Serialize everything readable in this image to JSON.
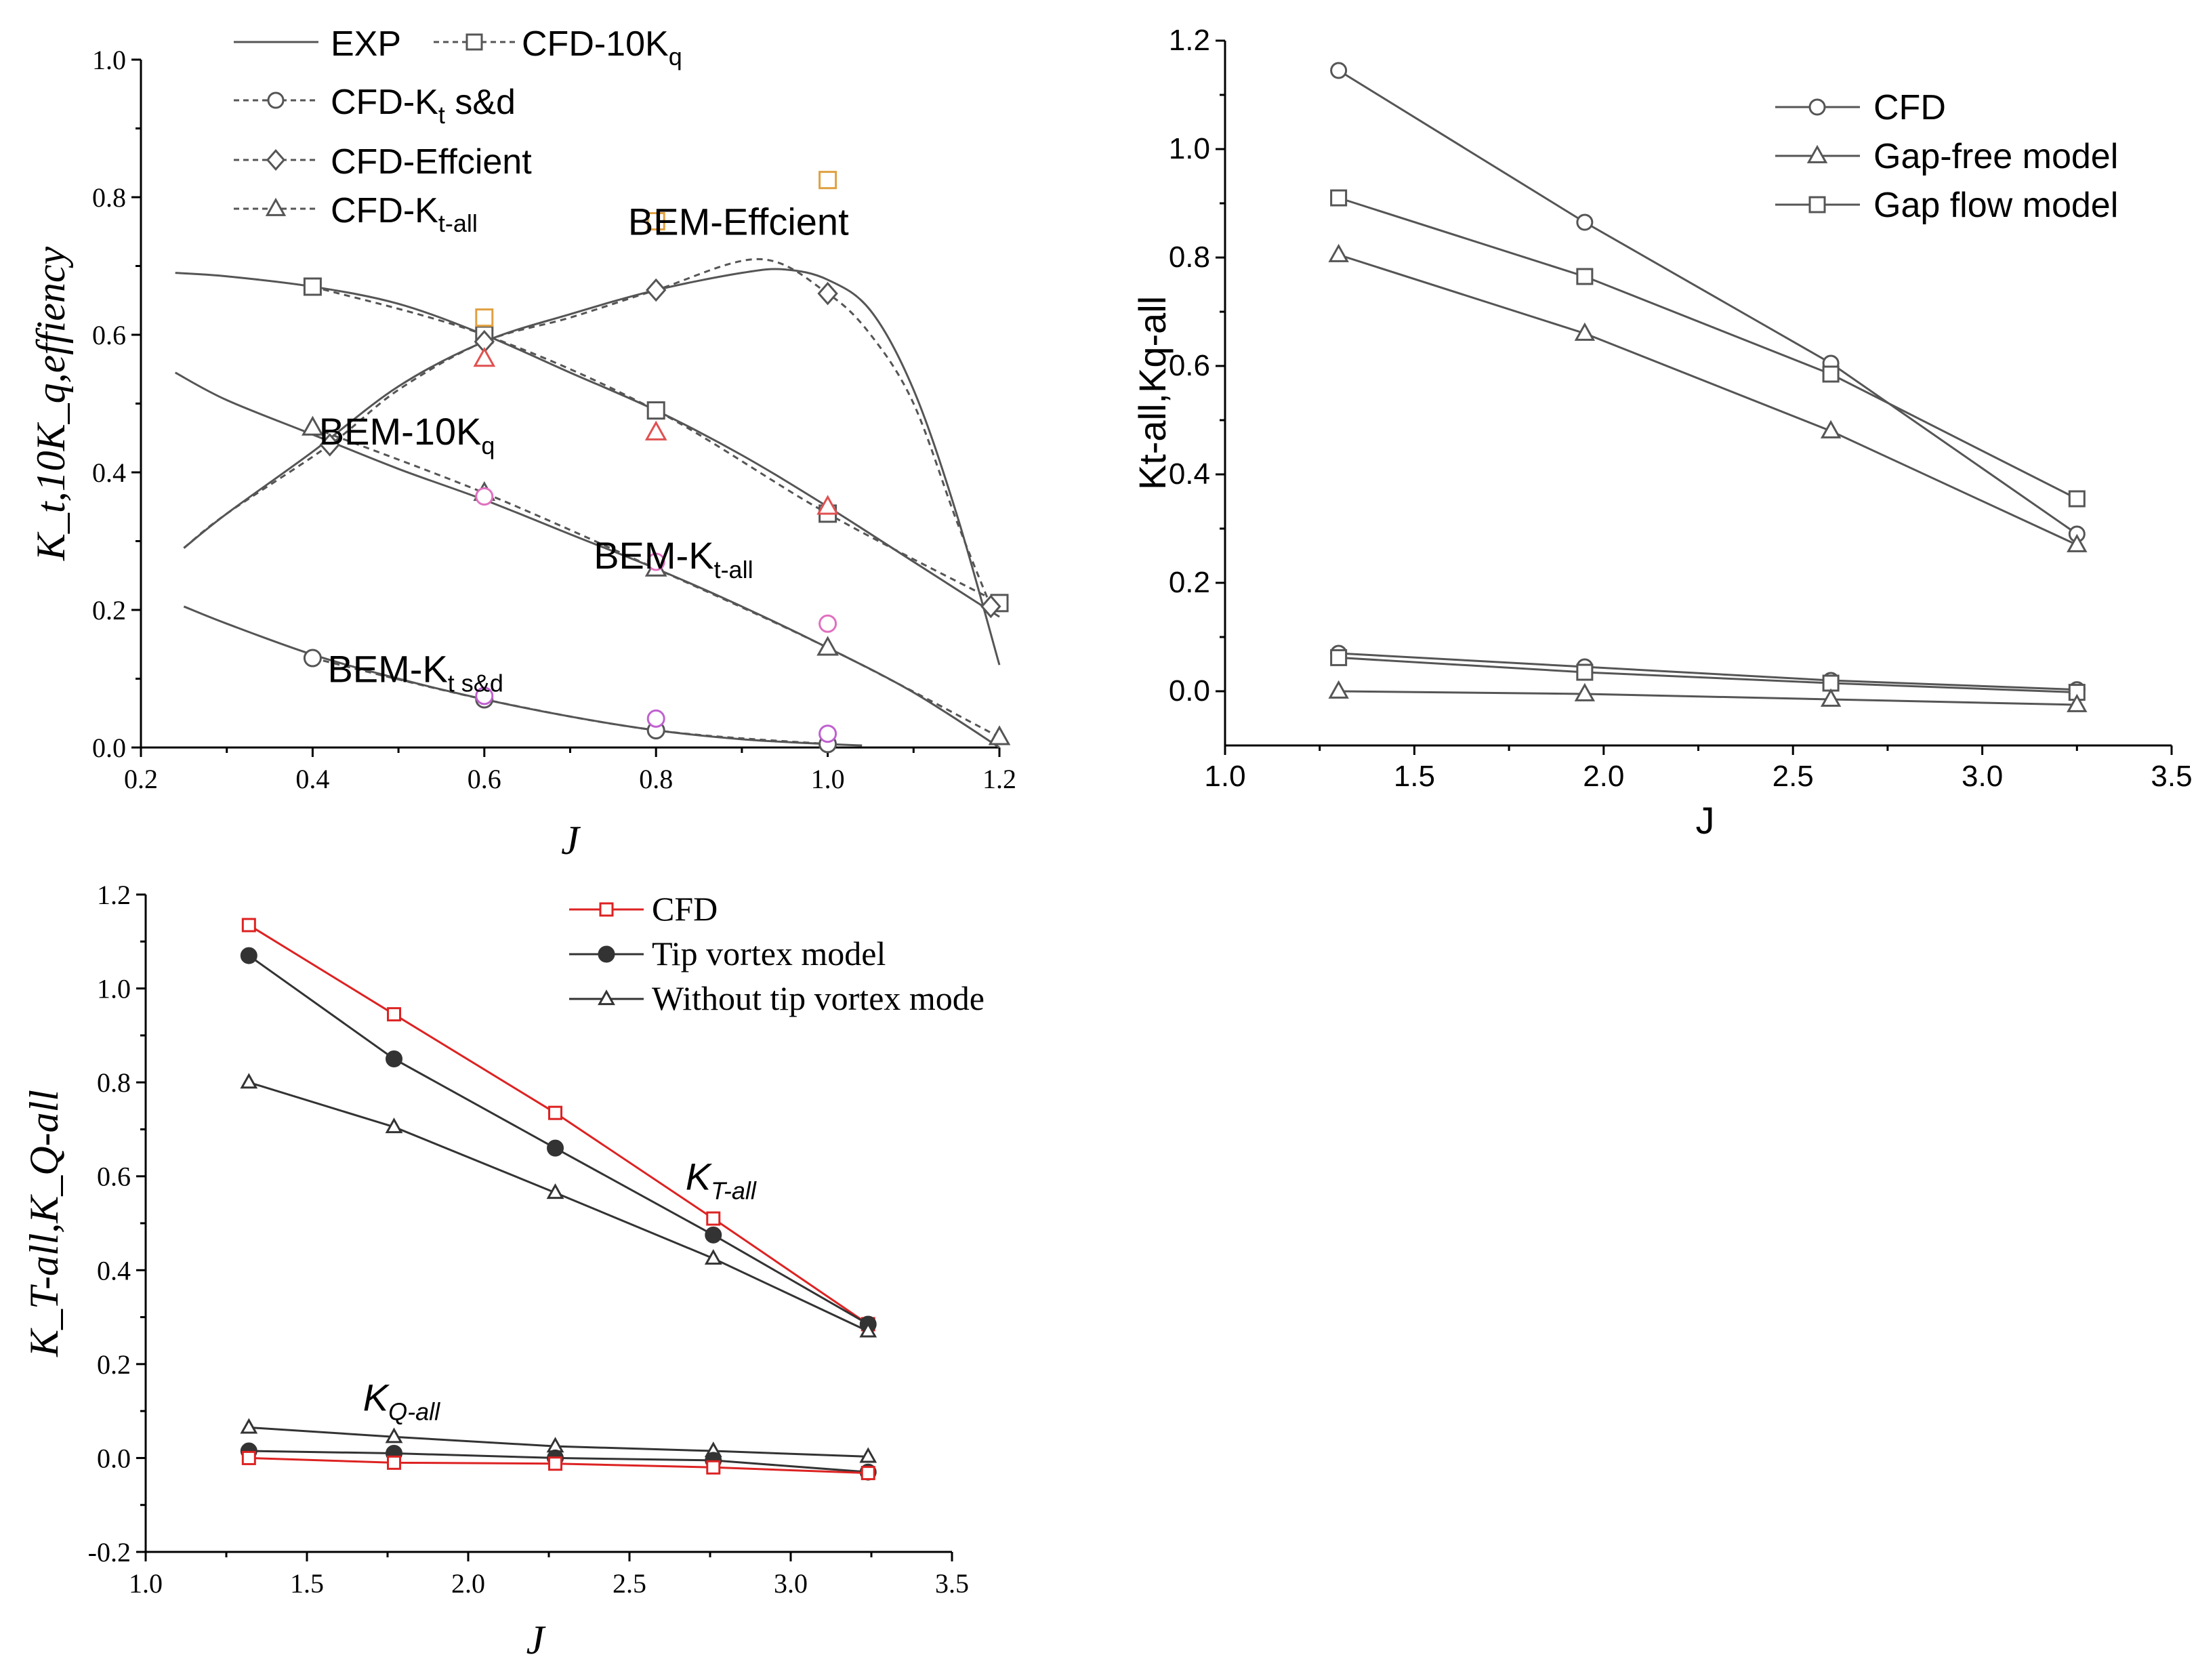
{
  "chart_data": [
    {
      "id": "p1",
      "type": "line",
      "xlabel": "J",
      "ylabel": "K_t,10K_q,effiency",
      "xlim": [
        0.2,
        1.2
      ],
      "ylim": [
        0.0,
        1.0
      ],
      "xticks": [
        "0.2",
        "0.4",
        "0.6",
        "0.8",
        "1.0",
        "1.2"
      ],
      "yticks": [
        "0.0",
        "0.2",
        "0.4",
        "0.6",
        "0.8",
        "1.0"
      ],
      "legend": [
        {
          "label": "EXP",
          "marker": "none",
          "dash": false
        },
        {
          "label": "CFD-10K",
          "sub": "q",
          "marker": "square",
          "dash": true
        },
        {
          "label": "CFD-K",
          "sub": "t",
          "tail": " s&d",
          "marker": "circle",
          "dash": true
        },
        {
          "label": "CFD-Effcient",
          "marker": "diamond",
          "dash": true
        },
        {
          "label": "CFD-K",
          "sub": "t-all",
          "marker": "triangle",
          "dash": true
        }
      ],
      "annotations": [
        {
          "text": "BEM-Effcient",
          "x": 0.87,
          "y": 0.765
        },
        {
          "text": "BEM-10K",
          "sub": "q",
          "x": 0.51,
          "y": 0.46
        },
        {
          "text": "BEM-K",
          "sub": "t-all",
          "x": 0.83,
          "y": 0.28
        },
        {
          "text": "BEM-K",
          "sub": "t s&d",
          "x": 0.52,
          "y": 0.115
        }
      ],
      "series": [
        {
          "name": "EXP 10Kq",
          "style": "solid",
          "color": "#555555",
          "x": [
            0.24,
            0.3,
            0.4,
            0.5,
            0.6,
            0.7,
            0.8,
            0.9,
            1.0,
            1.1,
            1.2
          ],
          "y": [
            0.69,
            0.685,
            0.67,
            0.645,
            0.6,
            0.545,
            0.49,
            0.425,
            0.35,
            0.27,
            0.19
          ]
        },
        {
          "name": "EXP Kt-all",
          "style": "solid",
          "color": "#555555",
          "x": [
            0.24,
            0.3,
            0.4,
            0.5,
            0.6,
            0.7,
            0.8,
            0.9,
            1.0,
            1.1,
            1.2
          ],
          "y": [
            0.545,
            0.505,
            0.455,
            0.405,
            0.36,
            0.31,
            0.26,
            0.205,
            0.145,
            0.08,
            0.0
          ]
        },
        {
          "name": "EXP Kt s&d",
          "style": "solid",
          "color": "#555555",
          "x": [
            0.25,
            0.3,
            0.4,
            0.5,
            0.6,
            0.7,
            0.8,
            0.9,
            1.0,
            1.04
          ],
          "y": [
            0.205,
            0.18,
            0.135,
            0.1,
            0.07,
            0.045,
            0.025,
            0.012,
            0.005,
            0.003
          ]
        },
        {
          "name": "EXP Efficiency",
          "style": "solid",
          "color": "#555555",
          "x": [
            0.25,
            0.3,
            0.4,
            0.5,
            0.6,
            0.7,
            0.8,
            0.9,
            0.95,
            1.0,
            1.05,
            1.1,
            1.15,
            1.2
          ],
          "y": [
            0.29,
            0.34,
            0.43,
            0.525,
            0.59,
            0.63,
            0.665,
            0.69,
            0.695,
            0.68,
            0.635,
            0.52,
            0.34,
            0.12
          ]
        },
        {
          "name": "CFD-10Kq",
          "style": "dash",
          "marker": "square",
          "color": "#555555",
          "x": [
            0.4,
            0.6,
            0.8,
            1.0,
            1.2
          ],
          "y": [
            0.67,
            0.6,
            0.49,
            0.34,
            0.21
          ]
        },
        {
          "name": "CFD-Kt-all",
          "style": "dash",
          "marker": "triangle",
          "color": "#555555",
          "x": [
            0.4,
            0.6,
            0.8,
            1.0,
            1.2
          ],
          "y": [
            0.465,
            0.37,
            0.26,
            0.145,
            0.015
          ]
        },
        {
          "name": "CFD-Kt s&d",
          "style": "dash",
          "marker": "circle",
          "color": "#555555",
          "x": [
            0.4,
            0.6,
            0.8,
            1.0
          ],
          "y": [
            0.13,
            0.07,
            0.025,
            0.005
          ]
        },
        {
          "name": "CFD-Effcient",
          "style": "dash",
          "marker": "diamond",
          "color": "#555555",
          "x": [
            0.25,
            0.3,
            0.42,
            0.5,
            0.6,
            0.7,
            0.8,
            0.92,
            1.0,
            1.05,
            1.1,
            1.15,
            1.19
          ],
          "y": [
            0.29,
            0.34,
            0.44,
            0.52,
            0.59,
            0.625,
            0.665,
            0.71,
            0.66,
            0.6,
            0.5,
            0.33,
            0.205
          ],
          "marker_x": [
            0.42,
            0.6,
            0.8,
            1.0,
            1.19
          ],
          "marker_y": [
            0.44,
            0.59,
            0.665,
            0.66,
            0.205
          ]
        },
        {
          "name": "BEM-Effcient",
          "style": "none",
          "marker": "square-open",
          "color": "#e0a040",
          "x": [
            0.6,
            0.8,
            1.0
          ],
          "y": [
            0.625,
            0.765,
            0.825
          ]
        },
        {
          "name": "BEM-10Kq",
          "style": "none",
          "marker": "triangle-open",
          "color": "#e05050",
          "x": [
            0.6,
            0.8,
            1.0
          ],
          "y": [
            0.565,
            0.458,
            0.35
          ]
        },
        {
          "name": "BEM-Kt-all",
          "style": "none",
          "marker": "circle-open",
          "color": "#e070c0",
          "x": [
            0.6,
            0.8,
            1.0
          ],
          "y": [
            0.365,
            0.27,
            0.18
          ]
        },
        {
          "name": "BEM-Kt s&d",
          "style": "none",
          "marker": "circle-open",
          "color": "#c060d0",
          "x": [
            0.6,
            0.8,
            1.0
          ],
          "y": [
            0.075,
            0.042,
            0.02
          ]
        }
      ]
    },
    {
      "id": "p2",
      "type": "line",
      "xlabel": "J",
      "ylabel": "Kt-all,Kq-all",
      "xlim": [
        1.0,
        3.5
      ],
      "ylim": [
        -0.1,
        1.2
      ],
      "xticks": [
        "1.0",
        "1.5",
        "2.0",
        "2.5",
        "3.0",
        "3.5"
      ],
      "yticks": [
        "0.0",
        "0.2",
        "0.4",
        "0.6",
        "0.8",
        "1.0",
        "1.2"
      ],
      "legend": [
        {
          "label": "CFD",
          "marker": "circle"
        },
        {
          "label": "Gap-free model",
          "marker": "triangle"
        },
        {
          "label": "Gap flow model",
          "marker": "square"
        }
      ],
      "series": [
        {
          "name": "CFD Kt-all",
          "marker": "circle",
          "x": [
            1.3,
            1.95,
            2.6,
            3.25
          ],
          "y": [
            1.145,
            0.865,
            0.605,
            0.29
          ]
        },
        {
          "name": "Gap flow model Kt-all",
          "marker": "square",
          "x": [
            1.3,
            1.95,
            2.6,
            3.25
          ],
          "y": [
            0.91,
            0.765,
            0.585,
            0.355
          ]
        },
        {
          "name": "Gap-free model Kt-all",
          "marker": "triangle",
          "x": [
            1.3,
            1.95,
            2.6,
            3.25
          ],
          "y": [
            0.805,
            0.66,
            0.48,
            0.27
          ]
        },
        {
          "name": "CFD Kq-all",
          "marker": "circle",
          "x": [
            1.3,
            1.95,
            2.6,
            3.25
          ],
          "y": [
            0.07,
            0.045,
            0.02,
            0.003
          ]
        },
        {
          "name": "Gap flow model Kq-all",
          "marker": "square",
          "x": [
            1.3,
            1.95,
            2.6,
            3.25
          ],
          "y": [
            0.062,
            0.035,
            0.015,
            -0.002
          ]
        },
        {
          "name": "Gap-free model Kq-all",
          "marker": "triangle",
          "x": [
            1.3,
            1.95,
            2.6,
            3.25
          ],
          "y": [
            0.0,
            -0.005,
            -0.015,
            -0.025
          ]
        }
      ]
    },
    {
      "id": "p3",
      "type": "line",
      "xlabel": "J",
      "ylabel": "K_T-all,K_Q-all",
      "xlim": [
        1.0,
        3.5
      ],
      "ylim": [
        -0.2,
        1.2
      ],
      "xticks": [
        "1.0",
        "1.5",
        "2.0",
        "2.5",
        "3.0",
        "3.5"
      ],
      "yticks": [
        "-0.2",
        "0.0",
        "0.2",
        "0.4",
        "0.6",
        "0.8",
        "1.0",
        "1.2"
      ],
      "legend": [
        {
          "label": "CFD",
          "marker": "square",
          "color": "#dd2222"
        },
        {
          "label": "Tip vortex model",
          "marker": "dot",
          "color": "#333333"
        },
        {
          "label": "Without  tip vortex mode",
          "marker": "triangle",
          "color": "#333333"
        }
      ],
      "annotations": [
        {
          "text": "K",
          "sub": "T-all",
          "x": 2.8,
          "y": 0.6
        },
        {
          "text": "K",
          "sub": "Q-all",
          "x": 1.8,
          "y": 0.13
        }
      ],
      "series": [
        {
          "name": "CFD KT-all",
          "marker": "square",
          "color": "#dd2222",
          "x": [
            1.32,
            1.77,
            2.27,
            2.76,
            3.24
          ],
          "y": [
            1.135,
            0.945,
            0.735,
            0.51,
            0.285
          ]
        },
        {
          "name": "Tip vortex model KT-all",
          "marker": "dot",
          "color": "#333333",
          "x": [
            1.32,
            1.77,
            2.27,
            2.76,
            3.24
          ],
          "y": [
            1.07,
            0.85,
            0.66,
            0.475,
            0.285
          ]
        },
        {
          "name": "Without tip vortex mode KT-all",
          "marker": "triangle",
          "color": "#333333",
          "x": [
            1.32,
            1.77,
            2.27,
            2.76,
            3.24
          ],
          "y": [
            0.8,
            0.705,
            0.565,
            0.425,
            0.27
          ]
        },
        {
          "name": "Without tip vortex mode KQ-all",
          "marker": "triangle",
          "color": "#333333",
          "x": [
            1.32,
            1.77,
            2.27,
            2.76,
            3.24
          ],
          "y": [
            0.065,
            0.045,
            0.025,
            0.015,
            0.003
          ]
        },
        {
          "name": "Tip vortex model KQ-all",
          "marker": "dot",
          "color": "#333333",
          "x": [
            1.32,
            1.77,
            2.27,
            2.76,
            3.24
          ],
          "y": [
            0.015,
            0.01,
            0.0,
            -0.005,
            -0.03
          ]
        },
        {
          "name": "CFD KQ-all",
          "marker": "square",
          "color": "#dd2222",
          "x": [
            1.32,
            1.77,
            2.27,
            2.76,
            3.24
          ],
          "y": [
            0.0,
            -0.01,
            -0.012,
            -0.02,
            -0.032
          ]
        }
      ]
    }
  ]
}
